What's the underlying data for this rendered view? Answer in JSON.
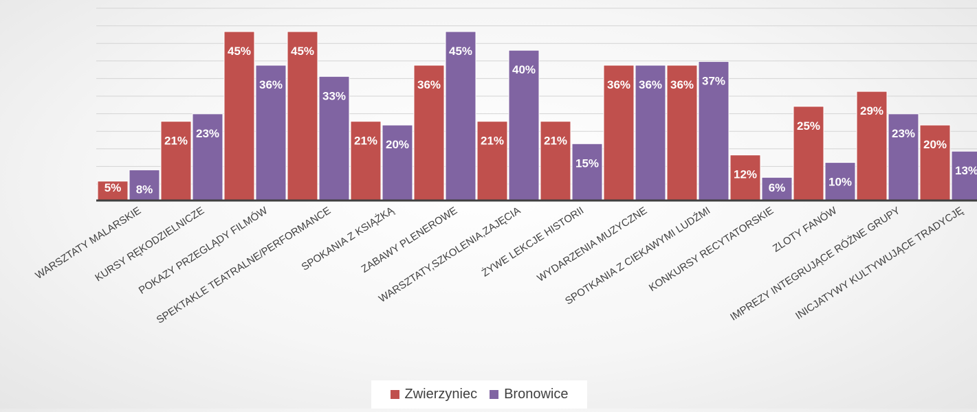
{
  "chart_data": {
    "type": "bar",
    "title": "",
    "categories": [
      "WARSZTATY MALARSKIE",
      "KURSY RĘKODZIELNICZE",
      "POKAZY PRZEGLĄDY FILMÓW",
      "SPEKTAKLE TEATRALNE/PERFORMANCE",
      "SPOKANIA Z KSIĄŻKĄ",
      "ZABAWY PLENEROWE",
      "WARSZTATY,SZKOLENIA,ZAJĘCIA",
      "ŻYWE LEKCJE HISTORII",
      "WYDARZENIA MUZYCZNE",
      "SPOTKANIA Z CIEKAWYMI LUDŹMI",
      "KONKURSY RECYTATORSKIE",
      "ZLOTY FANÓW",
      "IMPREZY INTEGRUJĄCE RÓŻNE GRUPY",
      "INICJATYWY KULTYWUJĄCE TRADYCJĘ"
    ],
    "series": [
      {
        "name": "Zwierzyniec",
        "color": "#c0504d",
        "values": [
          5,
          21,
          45,
          45,
          21,
          36,
          21,
          21,
          36,
          36,
          12,
          25,
          29,
          20
        ]
      },
      {
        "name": "Bronowice",
        "color": "#8064a2",
        "values": [
          8,
          23,
          36,
          33,
          20,
          45,
          40,
          15,
          36,
          37,
          6,
          10,
          23,
          13
        ]
      }
    ],
    "value_suffix": "%",
    "ylim": [
      0,
      45
    ],
    "grid": true,
    "legend_position": "bottom"
  }
}
